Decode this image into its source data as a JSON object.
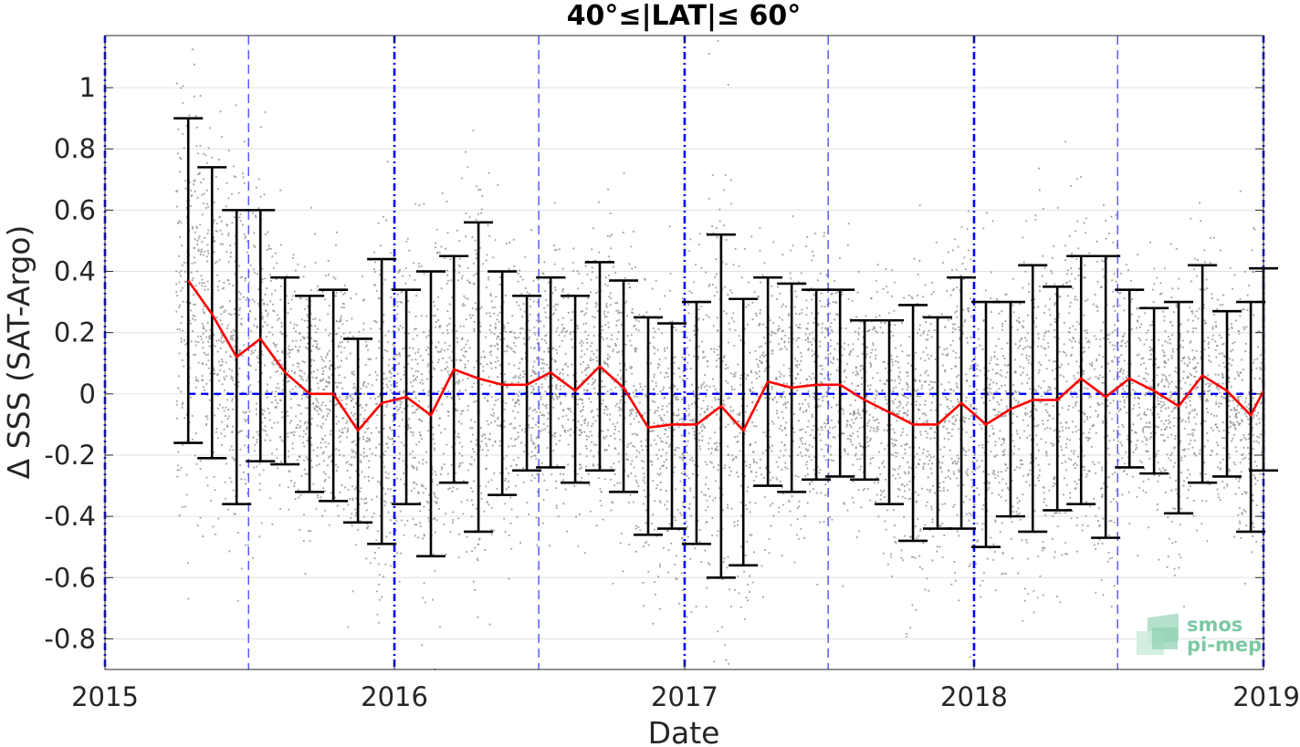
{
  "chart_data": {
    "type": "scatter",
    "title": "40°≤|LAT|≤ 60°",
    "xlabel": "Date",
    "ylabel": "Δ SSS (SAT-Argo)",
    "xlim": [
      "2015-01-01",
      "2019-01-01"
    ],
    "ylim": [
      -0.9,
      1.17
    ],
    "grid": true,
    "x_ticks": [
      "2015",
      "2016",
      "2017",
      "2018",
      "2019"
    ],
    "y_ticks": [
      {
        "value": -0.8,
        "label": "-0.8"
      },
      {
        "value": -0.6,
        "label": "-0.6"
      },
      {
        "value": -0.4,
        "label": "-0.4"
      },
      {
        "value": -0.2,
        "label": "-0.2"
      },
      {
        "value": 0,
        "label": "0"
      },
      {
        "value": 0.2,
        "label": "0.2"
      },
      {
        "value": 0.4,
        "label": "0.4"
      },
      {
        "value": 0.6,
        "label": "0.6"
      },
      {
        "value": 0.8,
        "label": "0.8"
      },
      {
        "value": 1,
        "label": "1"
      }
    ],
    "year_lines": [
      "2015-01-01",
      "2016-01-01",
      "2017-01-01",
      "2018-01-01",
      "2019-01-01"
    ],
    "half_year_lines": [
      "2015-07-01",
      "2016-07-01",
      "2017-07-01",
      "2018-07-01"
    ],
    "zero_line": 0,
    "scatter_range": {
      "start": "2015-04-01",
      "end": "2019-01-01",
      "ymin": -0.9,
      "ymax": 1.17
    },
    "colors": {
      "scatter": "#8c8c8c",
      "mean_line": "#ff0000",
      "error_bars": "#000000",
      "year_lines": "#0000ff",
      "half_year_lines": "#3333ff",
      "zero_line": "#0000ff",
      "grid": "#e0e0e0"
    },
    "series": [
      {
        "type": "line",
        "points": [
          {
            "date": "2015-04-16",
            "mean": 0.37,
            "low": -0.16,
            "high": 0.9
          },
          {
            "date": "2015-05-16",
            "mean": 0.26,
            "low": -0.21,
            "high": 0.74
          },
          {
            "date": "2015-06-16",
            "mean": 0.12,
            "low": -0.36,
            "high": 0.6
          },
          {
            "date": "2015-07-16",
            "mean": 0.18,
            "low": -0.22,
            "high": 0.6
          },
          {
            "date": "2015-08-16",
            "mean": 0.07,
            "low": -0.23,
            "high": 0.38
          },
          {
            "date": "2015-09-16",
            "mean": 0.0,
            "low": -0.32,
            "high": 0.32
          },
          {
            "date": "2015-10-16",
            "mean": 0.0,
            "low": -0.35,
            "high": 0.34
          },
          {
            "date": "2015-11-16",
            "mean": -0.12,
            "low": -0.42,
            "high": 0.18
          },
          {
            "date": "2015-12-16",
            "mean": -0.03,
            "low": -0.49,
            "high": 0.44
          },
          {
            "date": "2016-01-16",
            "mean": -0.01,
            "low": -0.36,
            "high": 0.34
          },
          {
            "date": "2016-02-16",
            "mean": -0.07,
            "low": -0.53,
            "high": 0.4
          },
          {
            "date": "2016-03-16",
            "mean": 0.08,
            "low": -0.29,
            "high": 0.45
          },
          {
            "date": "2016-04-16",
            "mean": 0.05,
            "low": -0.45,
            "high": 0.56
          },
          {
            "date": "2016-05-16",
            "mean": 0.03,
            "low": -0.33,
            "high": 0.4
          },
          {
            "date": "2016-06-16",
            "mean": 0.03,
            "low": -0.25,
            "high": 0.32
          },
          {
            "date": "2016-07-16",
            "mean": 0.07,
            "low": -0.24,
            "high": 0.38
          },
          {
            "date": "2016-08-16",
            "mean": 0.01,
            "low": -0.29,
            "high": 0.32
          },
          {
            "date": "2016-09-16",
            "mean": 0.09,
            "low": -0.25,
            "high": 0.43
          },
          {
            "date": "2016-10-16",
            "mean": 0.02,
            "low": -0.32,
            "high": 0.37
          },
          {
            "date": "2016-11-16",
            "mean": -0.11,
            "low": -0.46,
            "high": 0.25
          },
          {
            "date": "2016-12-16",
            "mean": -0.1,
            "low": -0.44,
            "high": 0.23
          },
          {
            "date": "2017-01-16",
            "mean": -0.1,
            "low": -0.49,
            "high": 0.3
          },
          {
            "date": "2017-02-16",
            "mean": -0.04,
            "low": -0.6,
            "high": 0.52
          },
          {
            "date": "2017-03-16",
            "mean": -0.12,
            "low": -0.56,
            "high": 0.31
          },
          {
            "date": "2017-04-16",
            "mean": 0.04,
            "low": -0.3,
            "high": 0.38
          },
          {
            "date": "2017-05-16",
            "mean": 0.02,
            "low": -0.32,
            "high": 0.36
          },
          {
            "date": "2017-06-16",
            "mean": 0.03,
            "low": -0.28,
            "high": 0.34
          },
          {
            "date": "2017-07-16",
            "mean": 0.03,
            "low": -0.27,
            "high": 0.34
          },
          {
            "date": "2017-08-16",
            "mean": -0.02,
            "low": -0.28,
            "high": 0.24
          },
          {
            "date": "2017-09-16",
            "mean": -0.06,
            "low": -0.36,
            "high": 0.24
          },
          {
            "date": "2017-10-16",
            "mean": -0.1,
            "low": -0.48,
            "high": 0.29
          },
          {
            "date": "2017-11-16",
            "mean": -0.1,
            "low": -0.44,
            "high": 0.25
          },
          {
            "date": "2017-12-16",
            "mean": -0.03,
            "low": -0.44,
            "high": 0.38
          },
          {
            "date": "2018-01-16",
            "mean": -0.1,
            "low": -0.5,
            "high": 0.3
          },
          {
            "date": "2018-02-16",
            "mean": -0.05,
            "low": -0.4,
            "high": 0.3
          },
          {
            "date": "2018-03-16",
            "mean": -0.02,
            "low": -0.45,
            "high": 0.42
          },
          {
            "date": "2018-04-16",
            "mean": -0.02,
            "low": -0.38,
            "high": 0.35
          },
          {
            "date": "2018-05-16",
            "mean": 0.05,
            "low": -0.36,
            "high": 0.45
          },
          {
            "date": "2018-06-16",
            "mean": -0.01,
            "low": -0.47,
            "high": 0.45
          },
          {
            "date": "2018-07-16",
            "mean": 0.05,
            "low": -0.24,
            "high": 0.34
          },
          {
            "date": "2018-08-16",
            "mean": 0.01,
            "low": -0.26,
            "high": 0.28
          },
          {
            "date": "2018-09-16",
            "mean": -0.04,
            "low": -0.39,
            "high": 0.3
          },
          {
            "date": "2018-10-16",
            "mean": 0.06,
            "low": -0.29,
            "high": 0.42
          },
          {
            "date": "2018-11-16",
            "mean": 0.01,
            "low": -0.27,
            "high": 0.27
          },
          {
            "date": "2018-12-16",
            "mean": -0.07,
            "low": -0.45,
            "high": 0.3
          },
          {
            "date": "2019-01-01",
            "mean": 0.01,
            "low": -0.25,
            "high": 0.41
          }
        ]
      }
    ]
  },
  "logo": {
    "line1": "smos",
    "line2": "pi-mep",
    "color": "#7cc9a4"
  }
}
